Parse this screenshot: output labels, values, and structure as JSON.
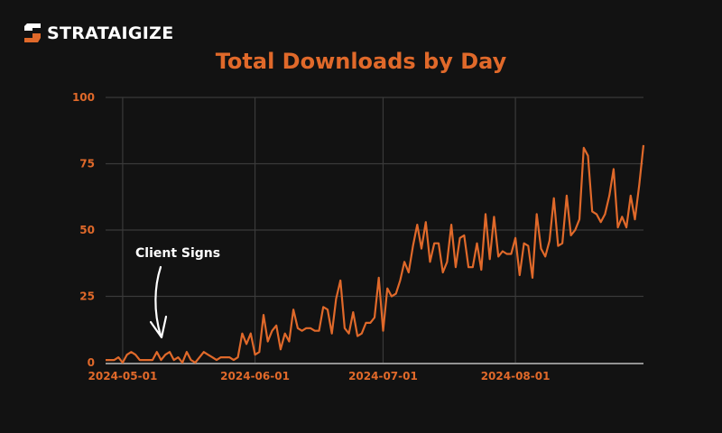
{
  "brand": {
    "name": "STRATAIGIZE",
    "logo_colors": {
      "top": "#ffffff",
      "bottom": "#e0692a"
    }
  },
  "colors": {
    "background": "#121212",
    "accent": "#e0692a",
    "grid": "#3a3a3a",
    "baseline": "#bdbdbd",
    "annotation": "#ffffff"
  },
  "chart_data": {
    "type": "line",
    "title": "Total Downloads by Day",
    "xlabel": "",
    "ylabel": "",
    "ylim": [
      0,
      100
    ],
    "yticks": [
      0,
      25,
      50,
      75,
      100
    ],
    "ytick_labels": [
      "0",
      "25",
      "50",
      "75",
      "100"
    ],
    "xticks": [
      "2024-05-01",
      "2024-06-01",
      "2024-07-01",
      "2024-08-01"
    ],
    "x_start": "2024-04-27",
    "x_end": "2024-08-31",
    "grid": true,
    "legend": null,
    "annotations": [
      {
        "text": "Client Signs",
        "target_date": "2024-05-13",
        "arrow": "curved-down"
      }
    ],
    "series": [
      {
        "name": "Total Downloads",
        "color": "#e0692a",
        "values": [
          1,
          1,
          1,
          2,
          0,
          3,
          4,
          3,
          1,
          1,
          1,
          1,
          4,
          1,
          3,
          4,
          1,
          2,
          0,
          4,
          1,
          0,
          2,
          4,
          3,
          2,
          1,
          2,
          2,
          2,
          1,
          2,
          11,
          7,
          11,
          3,
          4,
          18,
          8,
          12,
          14,
          5,
          11,
          8,
          20,
          13,
          12,
          13,
          13,
          12,
          12,
          21,
          20,
          11,
          24,
          31,
          13,
          11,
          19,
          10,
          11,
          15,
          15,
          17,
          32,
          12,
          28,
          25,
          26,
          31,
          38,
          34,
          44,
          52,
          43,
          53,
          38,
          45,
          45,
          34,
          38,
          52,
          36,
          47,
          48,
          36,
          36,
          45,
          35,
          56,
          39,
          55,
          40,
          42,
          41,
          41,
          47,
          33,
          45,
          44,
          32,
          56,
          43,
          40,
          46,
          62,
          44,
          45,
          63,
          48,
          50,
          54,
          81,
          78,
          57,
          56,
          53,
          56,
          63,
          73,
          51,
          55,
          51,
          63,
          54,
          67,
          82
        ]
      }
    ]
  }
}
